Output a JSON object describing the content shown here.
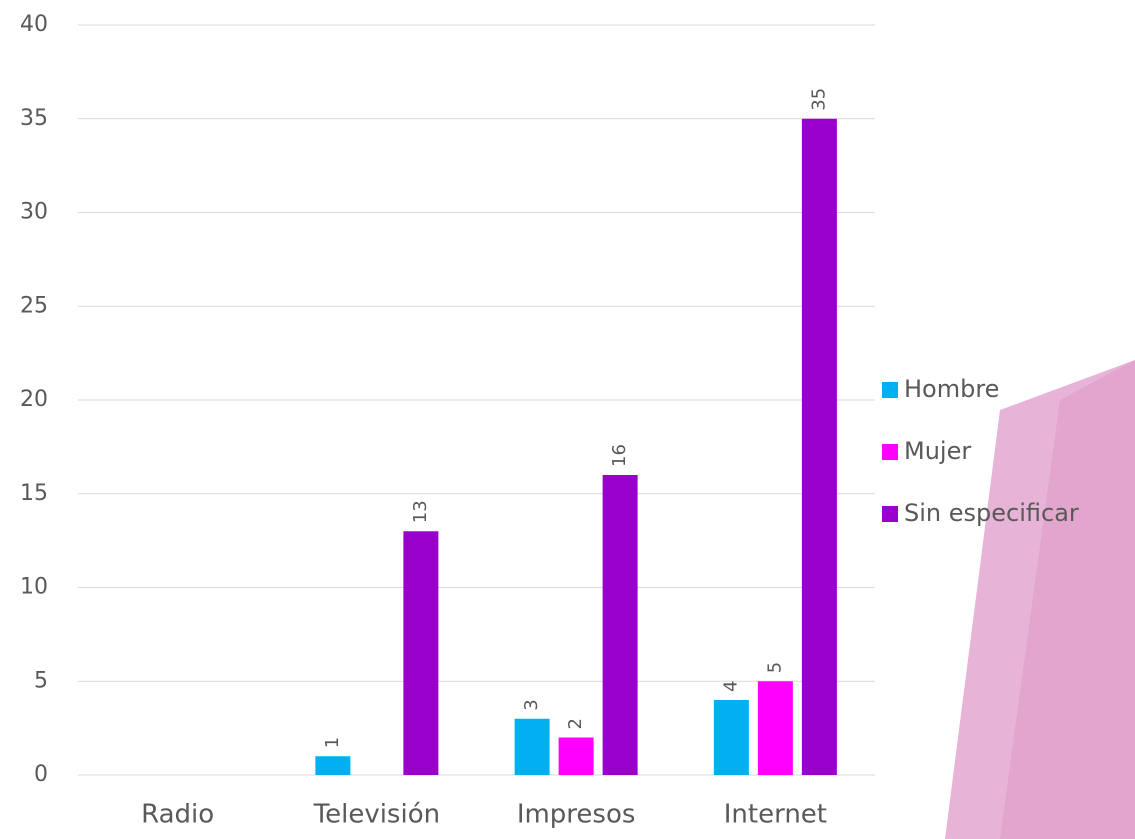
{
  "chart_data": {
    "type": "bar",
    "categories": [
      "Radio",
      "Televisión",
      "Impresos",
      "Internet"
    ],
    "series": [
      {
        "name": "Hombre",
        "color": "#00b0f0",
        "values": [
          null,
          1,
          3,
          4
        ]
      },
      {
        "name": "Mujer",
        "color": "#ff00ff",
        "values": [
          null,
          null,
          2,
          5
        ]
      },
      {
        "name": "Sin especificar",
        "color": "#9900cc",
        "values": [
          null,
          13,
          16,
          35
        ]
      }
    ],
    "ylim": [
      0,
      40
    ],
    "yticks": [
      0,
      5,
      10,
      15,
      20,
      25,
      30,
      35,
      40
    ],
    "grid": true,
    "legend": "right"
  }
}
